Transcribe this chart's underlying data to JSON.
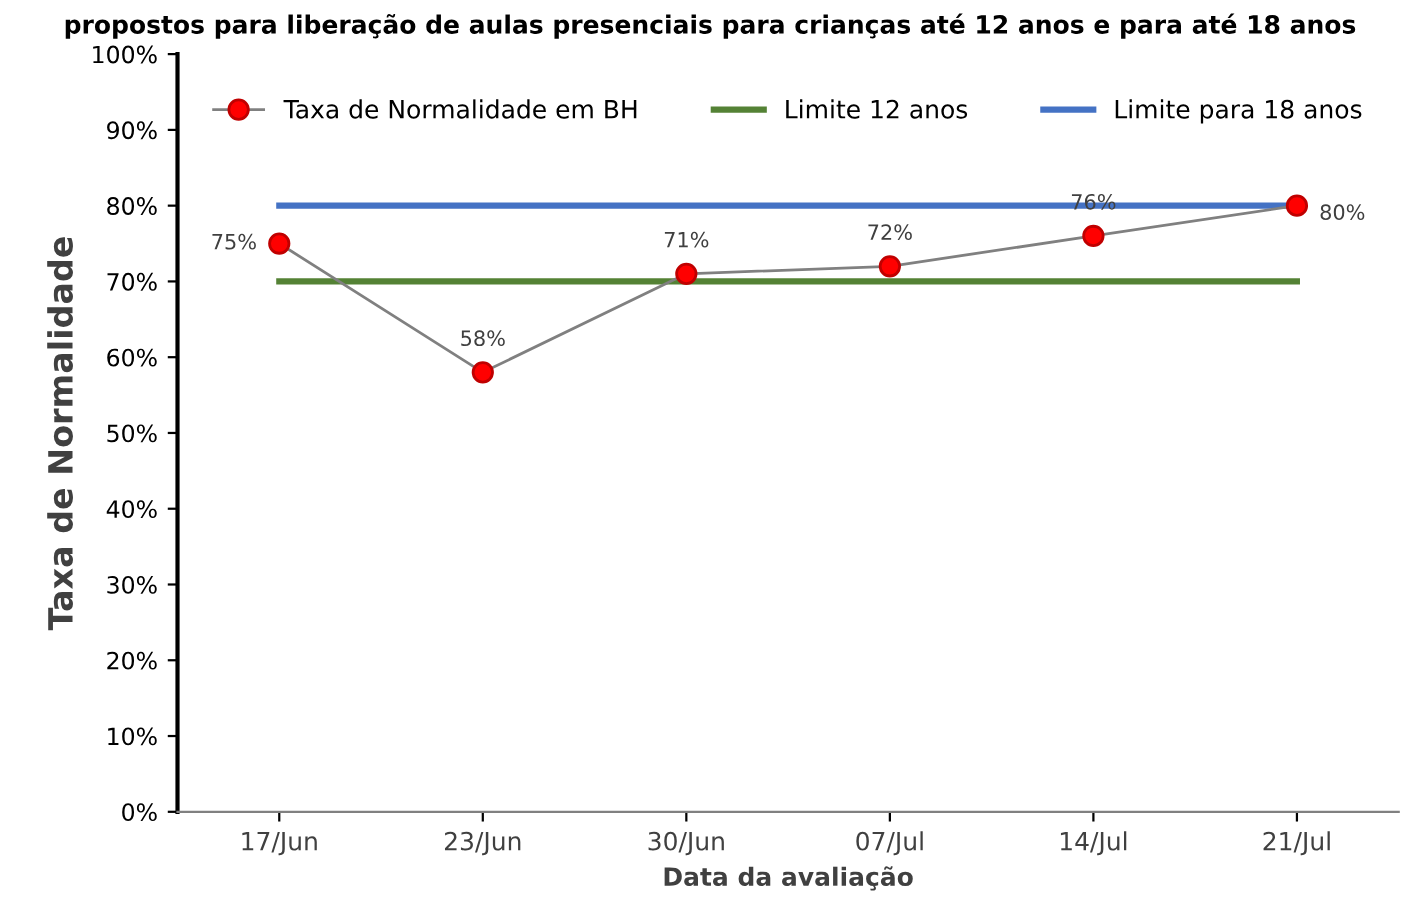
{
  "chart_data": {
    "type": "line",
    "title": "propostos para liberação de aulas presenciais para crianças até 12 anos e para até 18 anos",
    "xlabel": "Data da avaliação",
    "ylabel": "Taxa de Normalidade",
    "categories": [
      "17/Jun",
      "23/Jun",
      "30/Jun",
      "07/Jul",
      "14/Jul",
      "21/Jul"
    ],
    "series": [
      {
        "name": "Taxa de Normalidade em BH",
        "color": "#808080",
        "values": [
          75,
          58,
          71,
          72,
          76,
          80
        ],
        "marker": "circle",
        "value_labels": [
          "75%",
          "58%",
          "71%",
          "72%",
          "76%",
          "80%"
        ]
      },
      {
        "name": "Limite 12 anos",
        "color": "#548235",
        "values": [
          70,
          70,
          70,
          70,
          70,
          70
        ],
        "marker": "none"
      },
      {
        "name": "Limite para 18 anos",
        "color": "#4472c4",
        "values": [
          80,
          80,
          80,
          80,
          80,
          80
        ],
        "marker": "none"
      }
    ],
    "ylim": [
      0,
      100
    ],
    "yticks": [
      {
        "value": 0,
        "label": "0%"
      },
      {
        "value": 10,
        "label": "10%"
      },
      {
        "value": 20,
        "label": "20%"
      },
      {
        "value": 30,
        "label": "30%"
      },
      {
        "value": 40,
        "label": "40%"
      },
      {
        "value": 50,
        "label": "50%"
      },
      {
        "value": 60,
        "label": "60%"
      },
      {
        "value": 70,
        "label": "70%"
      },
      {
        "value": 80,
        "label": "80%"
      },
      {
        "value": 90,
        "label": "90%"
      },
      {
        "value": 100,
        "label": "100%"
      }
    ],
    "legend": "top",
    "grid": false
  }
}
